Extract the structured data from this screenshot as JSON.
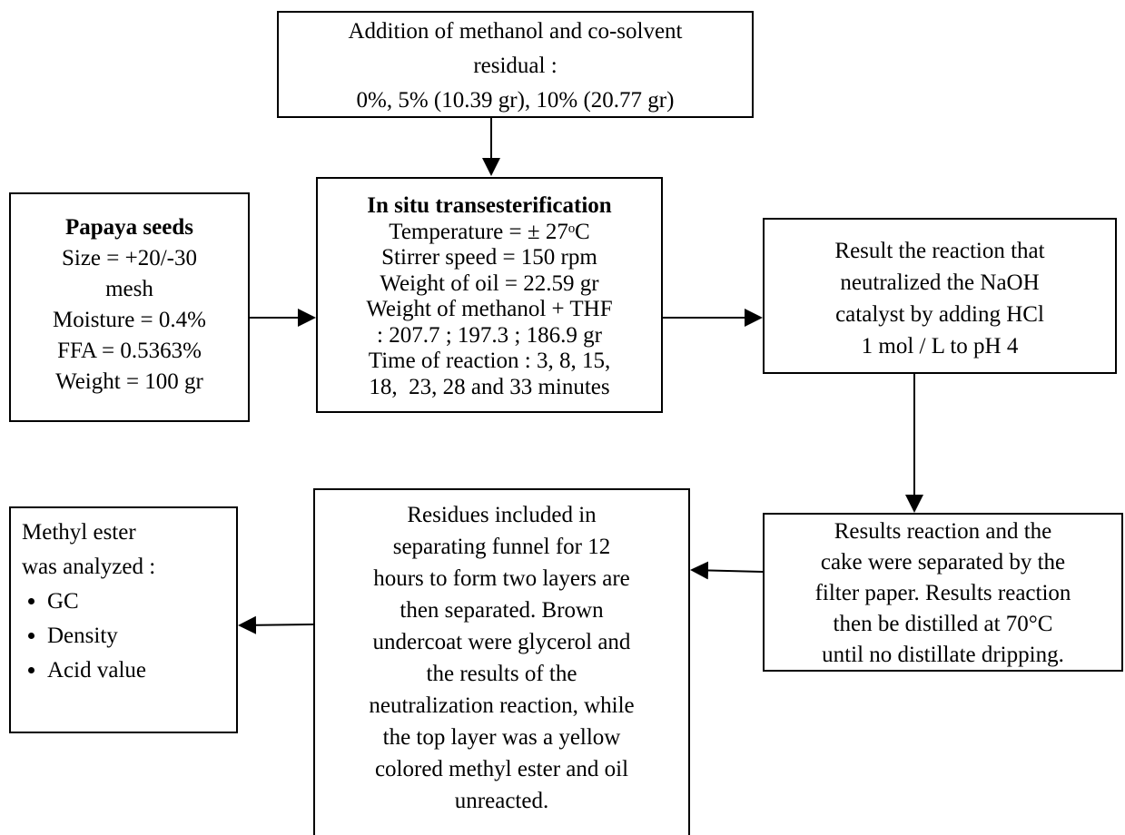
{
  "nodes": [
    {
      "lines": [
        "Addition of methanol and co-solvent",
        "residual :",
        "0%, 5% (10.39 gr), 10% (20.77 gr)"
      ]
    },
    {
      "title": "Papaya seeds",
      "lines": [
        "Size = +20/-30",
        "mesh",
        "Moisture = 0.4%",
        "FFA = 0.5363%",
        "Weight = 100 gr"
      ]
    },
    {
      "title": "In situ transesterification",
      "lines": [
        "Temperature = ± 27ᵒC",
        "Stirrer speed = 150 rpm",
        "Weight of oil = 22.59 gr",
        "Weight of methanol + THF",
        ": 207.7 ; 197.3 ; 186.9 gr",
        "Time of reaction : 3, 8, 15,",
        "18,  23, 28 and 33 minutes"
      ]
    },
    {
      "lines": [
        "Result the reaction that",
        "neutralized the NaOH",
        "catalyst by adding HCl",
        "1 mol / L to pH 4"
      ]
    },
    {
      "lines": [
        "Results reaction and the",
        "cake were separated by the",
        "filter paper. Results reaction",
        "then be distilled at 70°C",
        "until no distillate dripping."
      ]
    },
    {
      "lines": [
        "Residues included in",
        "separating funnel for 12",
        "hours to form two layers are",
        "then separated. Brown",
        "undercoat were glycerol and",
        "the results of the",
        "neutralization reaction, while",
        "the top layer was a yellow",
        "colored methyl ester and oil",
        "unreacted."
      ]
    },
    {
      "lines": [
        "Methyl ester",
        "was analyzed :"
      ],
      "bullets": [
        "GC",
        "Density",
        "Acid value"
      ]
    }
  ]
}
